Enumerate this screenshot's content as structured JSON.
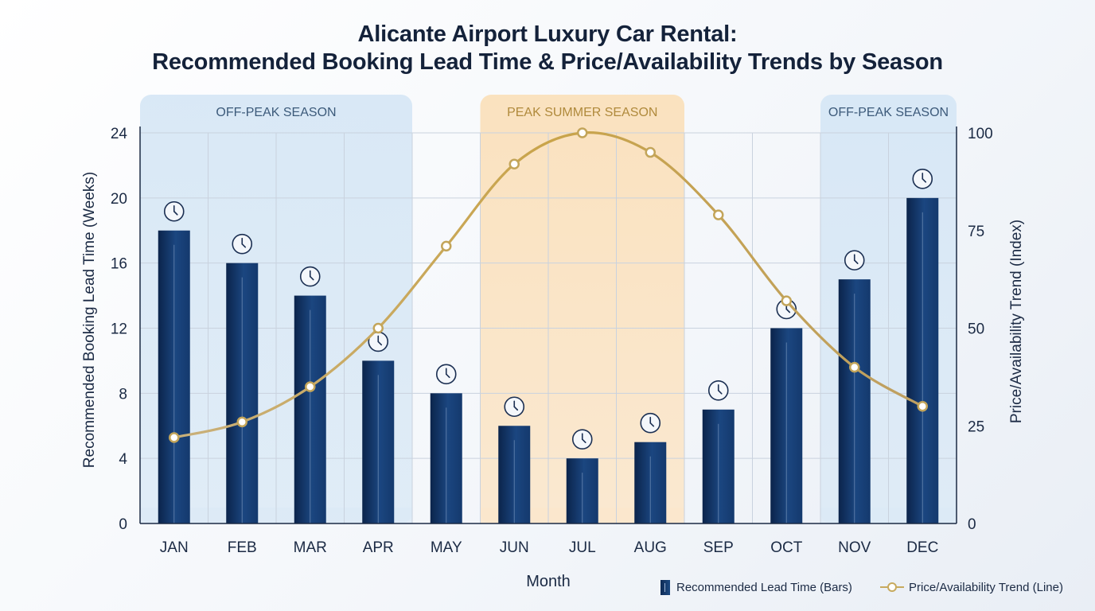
{
  "title_line1": "Alicante Airport Luxury Car Rental:",
  "title_line2": "Recommended Booking Lead Time & Price/Availability Trends by Season",
  "legend": {
    "bars_label": "Recommended Lead Time (Bars)",
    "line_label": "Price/Availability Trend (Line)"
  },
  "colors": {
    "bar_dark": "#0e2a55",
    "bar_light": "#1d4a82",
    "line": "#c7aa5e",
    "offpeak_band": "#d6e7f6",
    "peak_band": "#fae3c2",
    "offpeak_text": "#3c5a7a",
    "peak_text": "#b08a3c"
  },
  "chart_data": {
    "type": "bar",
    "xlabel": "Month",
    "ylabel": "Recommended Booking Lead Time (Weeks)",
    "y2label": "Price/Availability Trend (Index)",
    "categories": [
      "JAN",
      "FEB",
      "MAR",
      "APR",
      "MAY",
      "JUN",
      "JUL",
      "AUG",
      "SEP",
      "OCT",
      "NOV",
      "DEC"
    ],
    "ylim": [
      0,
      24
    ],
    "yticks": [
      0,
      4,
      8,
      12,
      16,
      20,
      24
    ],
    "y2lim": [
      0,
      100
    ],
    "y2ticks": [
      0,
      25,
      50,
      75,
      100
    ],
    "grid": true,
    "legend_position": "bottom-right",
    "series": [
      {
        "name": "Recommended Lead Time (Bars)",
        "type": "bar",
        "axis": "left",
        "icon": "clock-icon",
        "values": [
          18,
          16,
          14,
          10,
          8,
          6,
          4,
          5,
          7,
          12,
          15,
          20
        ]
      },
      {
        "name": "Price/Availability Trend (Line)",
        "type": "line",
        "axis": "right",
        "values": [
          22,
          26,
          35,
          50,
          71,
          92,
          100,
          95,
          79,
          57,
          40,
          30
        ]
      }
    ],
    "seasons": [
      {
        "label": "OFF-PEAK SEASON",
        "start": "JAN",
        "end": "APR",
        "kind": "offpeak"
      },
      {
        "label": "PEAK SUMMER SEASON",
        "start": "JUN",
        "end": "AUG",
        "kind": "peak"
      },
      {
        "label": "OFF-PEAK SEASON",
        "start": "NOV",
        "end": "DEC",
        "kind": "offpeak"
      }
    ]
  }
}
